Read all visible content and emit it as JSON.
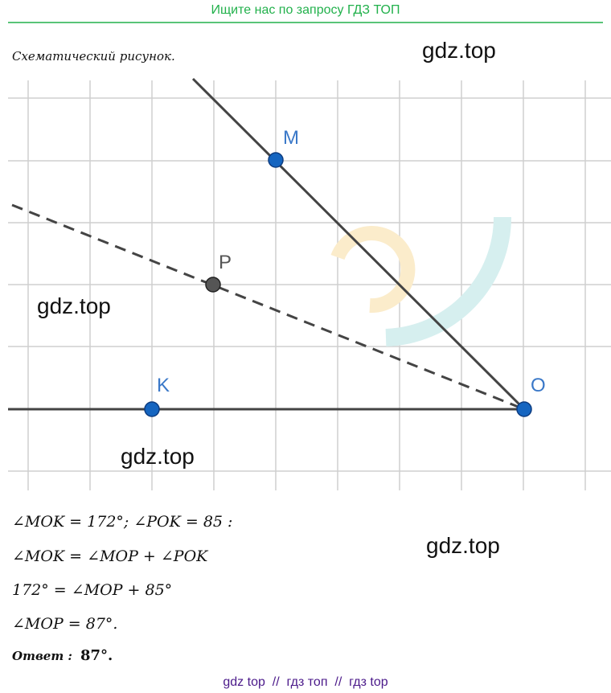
{
  "header": {
    "text": "Ищите нас по запросу ГДЗ ТОП"
  },
  "caption": "Схематический рисунок.",
  "watermarks": [
    "gdz.top",
    "gdz.top",
    "gdz.top",
    "gdz.top"
  ],
  "points": [
    {
      "label": "M"
    },
    {
      "label": "P"
    },
    {
      "label": "K"
    },
    {
      "label": "O"
    }
  ],
  "equations": [
    "∠MOK = 172°; ∠POK = 85 :",
    "∠MOK = ∠MOP + ∠POK",
    "172° = ∠MOP + 85°",
    "∠MOP = 87°."
  ],
  "answer": {
    "label": "Ответ :",
    "value": "87°."
  },
  "footer": {
    "text": "gdz top  //  гдз топ  //  гдз top"
  }
}
